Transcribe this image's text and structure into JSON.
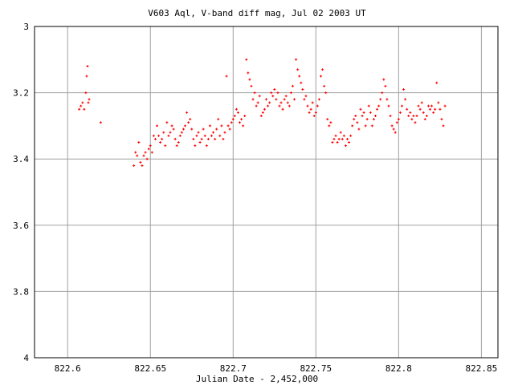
{
  "chart_data": {
    "type": "scatter",
    "title": "V603 Aql, V-band diff mag, Jul 02 2003 UT",
    "xlabel": "Julian Date - 2,452,000",
    "ylabel": "",
    "xlim": [
      822.58,
      822.86
    ],
    "ylim": [
      3.0,
      4.0
    ],
    "y_inverted": true,
    "grid": true,
    "legend": "none",
    "x_ticks": [
      "822.6",
      "822.65",
      "822.7",
      "822.75",
      "822.8",
      "822.85"
    ],
    "y_ticks": [
      "3",
      "3.2",
      "3.4",
      "3.6",
      "3.8",
      "4"
    ],
    "marker_color": "#ff0000",
    "grid_color": "#a0a0a0",
    "series": [
      {
        "x": [
          822.607,
          822.608,
          822.609,
          822.61,
          822.611,
          822.6115,
          822.612,
          822.6125,
          822.613,
          822.62,
          822.64,
          822.641,
          822.642,
          822.643,
          822.644,
          822.645,
          822.646,
          822.647,
          822.648,
          822.649,
          822.65,
          822.651,
          822.652,
          822.653,
          822.654,
          822.655,
          822.656,
          822.657,
          822.658,
          822.659,
          822.66,
          822.661,
          822.662,
          822.663,
          822.664,
          822.665,
          822.666,
          822.667,
          822.668,
          822.669,
          822.67,
          822.671,
          822.672,
          822.673,
          822.674,
          822.675,
          822.676,
          822.677,
          822.678,
          822.679,
          822.68,
          822.681,
          822.682,
          822.683,
          822.684,
          822.685,
          822.686,
          822.687,
          822.688,
          822.689,
          822.69,
          822.691,
          822.692,
          822.693,
          822.694,
          822.695,
          822.696,
          822.697,
          822.698,
          822.699,
          822.7,
          822.701,
          822.702,
          822.703,
          822.704,
          822.705,
          822.706,
          822.707,
          822.708,
          822.709,
          822.71,
          822.711,
          822.712,
          822.713,
          822.714,
          822.715,
          822.716,
          822.717,
          822.718,
          822.719,
          822.72,
          822.721,
          822.722,
          822.723,
          822.724,
          822.725,
          822.726,
          822.727,
          822.728,
          822.729,
          822.73,
          822.731,
          822.732,
          822.733,
          822.734,
          822.735,
          822.736,
          822.737,
          822.738,
          822.739,
          822.74,
          822.741,
          822.742,
          822.743,
          822.744,
          822.745,
          822.746,
          822.747,
          822.748,
          822.749,
          822.75,
          822.751,
          822.752,
          822.753,
          822.754,
          822.755,
          822.756,
          822.757,
          822.758,
          822.759,
          822.76,
          822.761,
          822.762,
          822.763,
          822.764,
          822.765,
          822.766,
          822.767,
          822.768,
          822.769,
          822.77,
          822.771,
          822.772,
          822.773,
          822.774,
          822.775,
          822.776,
          822.777,
          822.778,
          822.779,
          822.78,
          822.781,
          822.782,
          822.783,
          822.784,
          822.785,
          822.786,
          822.787,
          822.788,
          822.789,
          822.79,
          822.791,
          822.792,
          822.793,
          822.794,
          822.795,
          822.796,
          822.797,
          822.798,
          822.799,
          822.8,
          822.801,
          822.802,
          822.803,
          822.804,
          822.805,
          822.806,
          822.807,
          822.808,
          822.809,
          822.81,
          822.811,
          822.812,
          822.813,
          822.814,
          822.815,
          822.816,
          822.817,
          822.818,
          822.819,
          822.82,
          822.821,
          822.822,
          822.823,
          822.824,
          822.825,
          822.826,
          822.827,
          822.828
        ],
        "y": [
          3.25,
          3.24,
          3.23,
          3.25,
          3.2,
          3.15,
          3.12,
          3.23,
          3.22,
          3.29,
          3.42,
          3.38,
          3.39,
          3.35,
          3.41,
          3.42,
          3.39,
          3.38,
          3.4,
          3.37,
          3.36,
          3.38,
          3.33,
          3.34,
          3.3,
          3.33,
          3.35,
          3.34,
          3.32,
          3.36,
          3.29,
          3.33,
          3.32,
          3.3,
          3.31,
          3.34,
          3.36,
          3.35,
          3.33,
          3.32,
          3.31,
          3.3,
          3.26,
          3.29,
          3.28,
          3.31,
          3.34,
          3.36,
          3.33,
          3.32,
          3.35,
          3.34,
          3.31,
          3.33,
          3.36,
          3.34,
          3.3,
          3.33,
          3.32,
          3.34,
          3.31,
          3.28,
          3.33,
          3.3,
          3.34,
          3.32,
          3.15,
          3.3,
          3.31,
          3.29,
          3.28,
          3.27,
          3.25,
          3.26,
          3.29,
          3.28,
          3.3,
          3.27,
          3.1,
          3.14,
          3.16,
          3.18,
          3.22,
          3.2,
          3.24,
          3.23,
          3.21,
          3.27,
          3.26,
          3.25,
          3.22,
          3.24,
          3.23,
          3.2,
          3.21,
          3.19,
          3.22,
          3.2,
          3.24,
          3.23,
          3.25,
          3.22,
          3.21,
          3.23,
          3.24,
          3.2,
          3.18,
          3.22,
          3.1,
          3.13,
          3.15,
          3.17,
          3.19,
          3.22,
          3.21,
          3.24,
          3.26,
          3.25,
          3.23,
          3.27,
          3.26,
          3.24,
          3.22,
          3.15,
          3.13,
          3.18,
          3.2,
          3.28,
          3.3,
          3.29,
          3.35,
          3.34,
          3.33,
          3.35,
          3.34,
          3.32,
          3.34,
          3.33,
          3.36,
          3.34,
          3.35,
          3.33,
          3.3,
          3.28,
          3.27,
          3.29,
          3.31,
          3.25,
          3.27,
          3.26,
          3.3,
          3.28,
          3.24,
          3.26,
          3.3,
          3.28,
          3.27,
          3.25,
          3.24,
          3.22,
          3.2,
          3.16,
          3.18,
          3.22,
          3.24,
          3.27,
          3.3,
          3.31,
          3.32,
          3.29,
          3.28,
          3.26,
          3.24,
          3.19,
          3.22,
          3.25,
          3.27,
          3.26,
          3.28,
          3.27,
          3.29,
          3.27,
          3.24,
          3.25,
          3.23,
          3.26,
          3.28,
          3.27,
          3.24,
          3.25,
          3.24,
          3.26,
          3.25,
          3.17,
          3.23,
          3.25,
          3.28,
          3.3,
          3.24
        ]
      }
    ]
  }
}
